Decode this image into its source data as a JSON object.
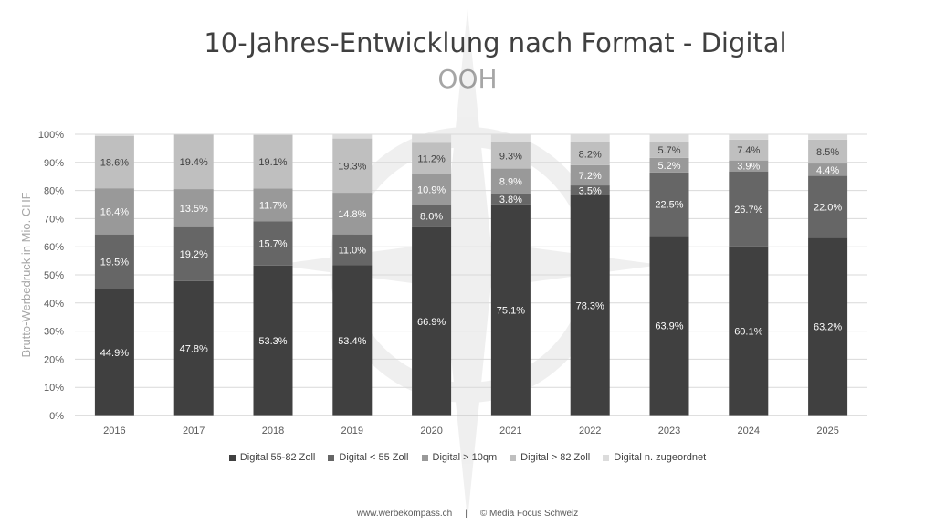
{
  "title": "10-Jahres-Entwicklung nach Format - Digital",
  "subtitle": "OOH",
  "footer": {
    "website": "www.werbekompass.ch",
    "separator": "|",
    "copyright": "© Media Focus Schweiz"
  },
  "chart_data": {
    "type": "bar",
    "stacked": true,
    "percent_stacked": true,
    "title": "10-Jahres-Entwicklung nach Format - Digital",
    "subtitle": "OOH",
    "xlabel": "",
    "ylabel": "Brutto-Werbedruck in Mio. CHF",
    "ylim": [
      0,
      100
    ],
    "yticks": [
      "0%",
      "10%",
      "20%",
      "30%",
      "40%",
      "50%",
      "60%",
      "70%",
      "80%",
      "90%",
      "100%"
    ],
    "grid": true,
    "legend_position": "bottom",
    "categories": [
      "2016",
      "2017",
      "2018",
      "2019",
      "2020",
      "2021",
      "2022",
      "2023",
      "2024",
      "2025"
    ],
    "series": [
      {
        "name": "Digital 55-82 Zoll",
        "color": "#404040",
        "values": [
          44.9,
          47.8,
          53.3,
          53.4,
          66.9,
          75.1,
          78.3,
          63.9,
          60.1,
          63.2
        ],
        "labels": [
          "44.9%",
          "47.8%",
          "53.3%",
          "53.4%",
          "66.9%",
          "75.1%",
          "78.3%",
          "63.9%",
          "60.1%",
          "63.2%"
        ]
      },
      {
        "name": "Digital < 55 Zoll",
        "color": "#666666",
        "values": [
          19.5,
          19.2,
          15.7,
          11.0,
          8.0,
          3.8,
          3.5,
          22.5,
          26.7,
          22.0
        ],
        "labels": [
          "19.5%",
          "19.2%",
          "15.7%",
          "11.0%",
          "8.0%",
          "3.8%",
          "3.5%",
          "22.5%",
          "26.7%",
          "22.0%"
        ]
      },
      {
        "name": "Digital > 10qm",
        "color": "#999999",
        "values": [
          16.4,
          13.5,
          11.7,
          14.8,
          10.9,
          8.9,
          7.2,
          5.2,
          3.9,
          4.4
        ],
        "labels": [
          "16.4%",
          "13.5%",
          "11.7%",
          "14.8%",
          "10.9%",
          "8.9%",
          "7.2%",
          "5.2%",
          "3.9%",
          "4.4%"
        ]
      },
      {
        "name": "Digital > 82 Zoll",
        "color": "#bfbfbf",
        "values": [
          18.6,
          19.4,
          19.1,
          19.3,
          11.2,
          9.3,
          8.2,
          5.7,
          7.4,
          8.5
        ],
        "labels": [
          "18.6%",
          "19.4%",
          "19.1%",
          "19.3%",
          "11.2%",
          "9.3%",
          "8.2%",
          "5.7%",
          "7.4%",
          "8.5%"
        ]
      },
      {
        "name": "Digital n. zugeordnet",
        "color": "#dcdcdc",
        "values": [
          0.6,
          0.1,
          0.2,
          1.5,
          3.0,
          2.9,
          2.8,
          2.7,
          1.9,
          1.9
        ],
        "labels": [
          "",
          "",
          "",
          "",
          "",
          "",
          "",
          "",
          "",
          ""
        ]
      }
    ]
  }
}
